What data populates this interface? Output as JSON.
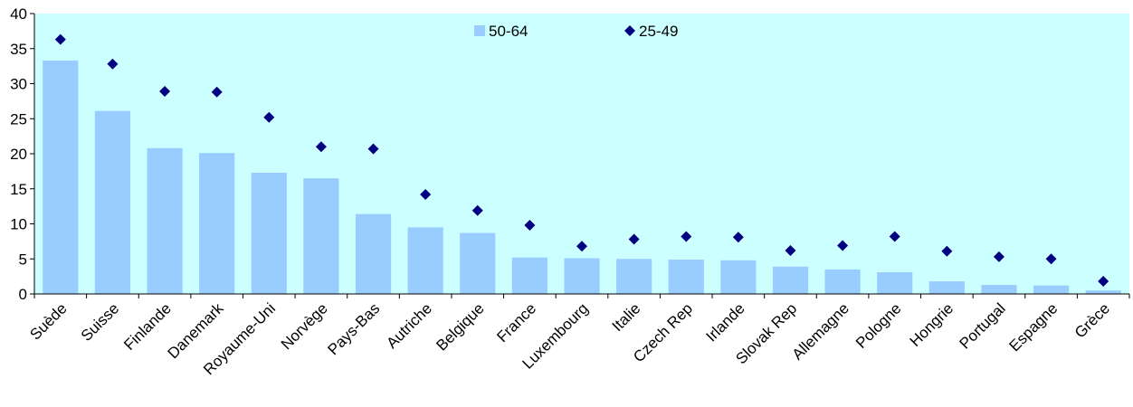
{
  "chart_data": {
    "type": "bar",
    "title": "",
    "xlabel": "",
    "ylabel": "",
    "ylim": [
      0,
      40
    ],
    "yticks": [
      0,
      5,
      10,
      15,
      20,
      25,
      30,
      35,
      40
    ],
    "grid": false,
    "legend_position": "top-center",
    "plot_background": "#ccffff",
    "categories": [
      "Suède",
      "Suisse",
      "Finlande",
      "Danemark",
      "Royaume-Uni",
      "Norvège",
      "Pays-Bas",
      "Autriche",
      "Belgique",
      "France",
      "Luxembourg",
      "Italie",
      "Czech Rep",
      "Irlande",
      "Slovak Rep",
      "Allemagne",
      "Pologne",
      "Hongrie",
      "Portugal",
      "Espagne",
      "Grèce"
    ],
    "series": [
      {
        "name": "50-64",
        "type": "bar",
        "color": "#99ccff",
        "values": [
          33.3,
          26.1,
          20.8,
          20.1,
          17.3,
          16.5,
          11.4,
          9.5,
          8.7,
          5.2,
          5.1,
          5.0,
          4.9,
          4.8,
          3.9,
          3.5,
          3.1,
          1.8,
          1.3,
          1.2,
          0.5
        ]
      },
      {
        "name": "25-49",
        "type": "scatter",
        "marker": "diamond",
        "color": "#000080",
        "values": [
          36.3,
          32.8,
          28.9,
          28.8,
          25.2,
          21.0,
          20.7,
          14.2,
          11.9,
          9.8,
          6.8,
          7.8,
          8.2,
          8.1,
          6.2,
          6.9,
          8.2,
          6.1,
          5.3,
          5.0,
          1.8
        ]
      }
    ]
  }
}
